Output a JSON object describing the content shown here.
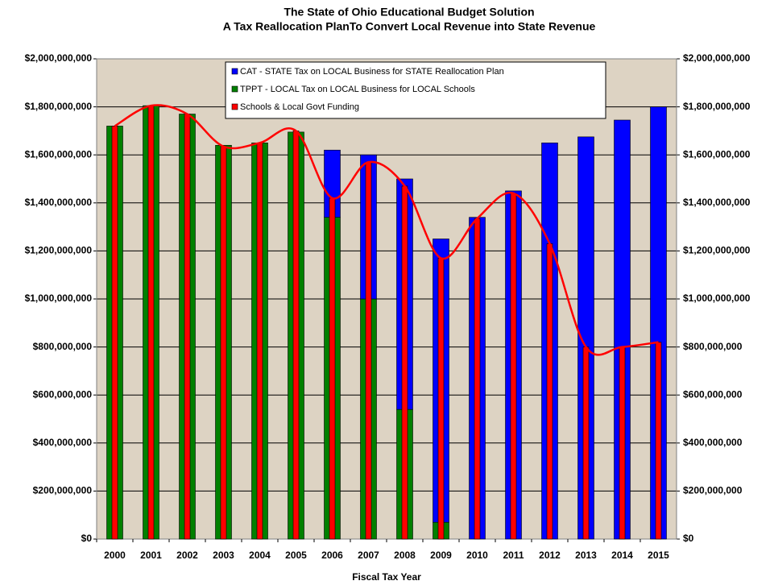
{
  "chart_data": {
    "type": "bar",
    "title": "The State of Ohio Educational Budget Solution",
    "subtitle": "A Tax Reallocation PlanTo Convert Local Revenue into State Revenue",
    "x_label": "Fiscal Tax Year",
    "categories": [
      "2000",
      "2001",
      "2002",
      "2003",
      "2004",
      "2005",
      "2006",
      "2007",
      "2008",
      "2009",
      "2010",
      "2011",
      "2012",
      "2013",
      "2014",
      "2015"
    ],
    "series": [
      {
        "name": "CAT - STATE Tax on LOCAL Business for STATE Reallocation Plan",
        "color": "#0000ff",
        "stack": true,
        "values": [
          0,
          0,
          0,
          0,
          0,
          0,
          280000000,
          600000000,
          960000000,
          1180000000,
          1340000000,
          1450000000,
          1650000000,
          1675000000,
          1745000000,
          1800000000
        ]
      },
      {
        "name": "TPPT - LOCAL Tax on LOCAL Business for LOCAL Schools",
        "color": "#008000",
        "stack": true,
        "values": [
          1720000000,
          1805000000,
          1770000000,
          1640000000,
          1650000000,
          1695000000,
          1340000000,
          1000000000,
          540000000,
          70000000,
          0,
          0,
          0,
          0,
          0,
          0
        ]
      },
      {
        "name": "Schools & Local Govt Funding",
        "color": "#ff0000",
        "smooth_line": true,
        "values": [
          1720000000,
          1805000000,
          1770000000,
          1635000000,
          1650000000,
          1700000000,
          1420000000,
          1570000000,
          1470000000,
          1170000000,
          1335000000,
          1440000000,
          1230000000,
          800000000,
          800000000,
          820000000
        ]
      }
    ],
    "ylim": [
      0,
      2000000000
    ],
    "yticks": [
      {
        "value": 0,
        "label": "$0"
      },
      {
        "value": 200000000,
        "label": "$200,000,000"
      },
      {
        "value": 400000000,
        "label": "$400,000,000"
      },
      {
        "value": 600000000,
        "label": "$600,000,000"
      },
      {
        "value": 800000000,
        "label": "$800,000,000"
      },
      {
        "value": 1000000000,
        "label": "$1,000,000,000"
      },
      {
        "value": 1200000000,
        "label": "$1,200,000,000"
      },
      {
        "value": 1400000000,
        "label": "$1,400,000,000"
      },
      {
        "value": 1600000000,
        "label": "$1,600,000,000"
      },
      {
        "value": 1800000000,
        "label": "$1,800,000,000"
      },
      {
        "value": 2000000000,
        "label": "$2,000,000,000"
      }
    ],
    "y2lim": [
      0,
      2000000000
    ],
    "y2ticks": [
      {
        "value": 0,
        "label": "$0"
      },
      {
        "value": 200000000,
        "label": "$200,000,000"
      },
      {
        "value": 400000000,
        "label": "$400,000,000"
      },
      {
        "value": 600000000,
        "label": "$600,000,000"
      },
      {
        "value": 800000000,
        "label": "$800,000,000"
      },
      {
        "value": 1000000000,
        "label": "$1,000,000,000"
      },
      {
        "value": 1200000000,
        "label": "$1,200,000,000"
      },
      {
        "value": 1400000000,
        "label": "$1,400,000,000"
      },
      {
        "value": 1600000000,
        "label": "$1,600,000,000"
      },
      {
        "value": 1800000000,
        "label": "$1,800,000,000"
      },
      {
        "value": 2000000000,
        "label": "$2,000,000,000"
      }
    ],
    "grid": true,
    "legend": "top"
  }
}
